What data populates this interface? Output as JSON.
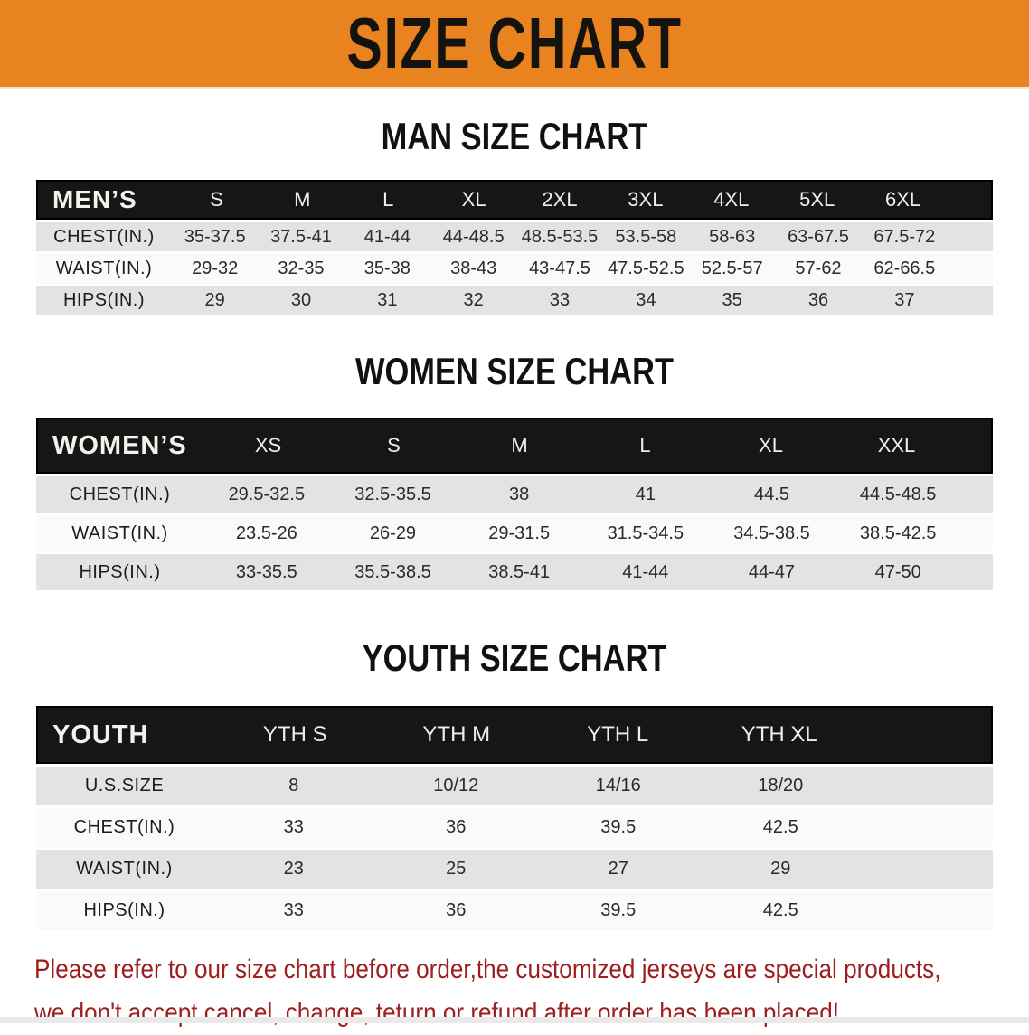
{
  "banner": {
    "title": "SIZE CHART",
    "bg_color": "#e8831f",
    "text_color": "#151310"
  },
  "sections": [
    {
      "id": "men",
      "heading": "MAN SIZE CHART",
      "table": {
        "label": "MEN’S",
        "columns": [
          "S",
          "M",
          "L",
          "XL",
          "2XL",
          "3XL",
          "4XL",
          "5XL",
          "6XL"
        ],
        "rows": [
          {
            "label": "CHEST(IN.)",
            "values": [
              "35-37.5",
              "37.5-41",
              "41-44",
              "44-48.5",
              "48.5-53.5",
              "53.5-58",
              "58-63",
              "63-67.5",
              "67.5-72"
            ]
          },
          {
            "label": "WAIST(IN.)",
            "values": [
              "29-32",
              "32-35",
              "35-38",
              "38-43",
              "43-47.5",
              "47.5-52.5",
              "52.5-57",
              "57-62",
              "62-66.5"
            ]
          },
          {
            "label": "HIPS(IN.)",
            "values": [
              "29",
              "30",
              "31",
              "32",
              "33",
              "34",
              "35",
              "36",
              "37"
            ]
          }
        ]
      }
    },
    {
      "id": "women",
      "heading": "WOMEN SIZE CHART",
      "table": {
        "label": "WOMEN’S",
        "columns": [
          "XS",
          "S",
          "M",
          "L",
          "XL",
          "XXL"
        ],
        "rows": [
          {
            "label": "CHEST(IN.)",
            "values": [
              "29.5-32.5",
              "32.5-35.5",
              "38",
              "41",
              "44.5",
              "44.5-48.5"
            ]
          },
          {
            "label": "WAIST(IN.)",
            "values": [
              "23.5-26",
              "26-29",
              "29-31.5",
              "31.5-34.5",
              "34.5-38.5",
              "38.5-42.5"
            ]
          },
          {
            "label": "HIPS(IN.)",
            "values": [
              "33-35.5",
              "35.5-38.5",
              "38.5-41",
              "41-44",
              "44-47",
              "47-50"
            ]
          }
        ]
      }
    },
    {
      "id": "youth",
      "heading": "YOUTH SIZE CHART",
      "table": {
        "label": "YOUTH",
        "columns": [
          "YTH S",
          "YTH M",
          "YTH L",
          "YTH XL"
        ],
        "rows": [
          {
            "label": "U.S.SIZE",
            "values": [
              "8",
              "10/12",
              "14/16",
              "18/20"
            ]
          },
          {
            "label": "CHEST(IN.)",
            "values": [
              "33",
              "36",
              "39.5",
              "42.5"
            ]
          },
          {
            "label": "WAIST(IN.)",
            "values": [
              "23",
              "25",
              "27",
              "29"
            ]
          },
          {
            "label": "HIPS(IN.)",
            "values": [
              "33",
              "36",
              "39.5",
              "42.5"
            ]
          }
        ]
      }
    }
  ],
  "disclaimer": {
    "line1": "Please refer to our size chart before order,the customized jerseys are special products,",
    "line2": "we don't accept cancel, change, teturn or refund after order has been placed!",
    "color": "#9c1e1e"
  },
  "colors": {
    "banner_orange": "#e8831f",
    "header_black": "#171615",
    "row_shade_gray": "#e3e3e3",
    "row_plain_white": "#fafafa",
    "disclaimer_red": "#9c1e1e"
  }
}
